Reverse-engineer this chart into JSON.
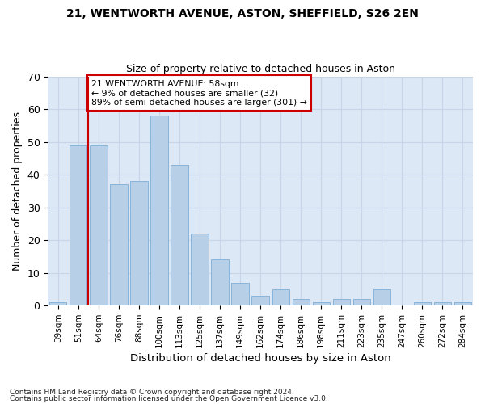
{
  "title1": "21, WENTWORTH AVENUE, ASTON, SHEFFIELD, S26 2EN",
  "title2": "Size of property relative to detached houses in Aston",
  "xlabel": "Distribution of detached houses by size in Aston",
  "ylabel": "Number of detached properties",
  "categories": [
    "39sqm",
    "51sqm",
    "64sqm",
    "76sqm",
    "88sqm",
    "100sqm",
    "113sqm",
    "125sqm",
    "137sqm",
    "149sqm",
    "162sqm",
    "174sqm",
    "186sqm",
    "198sqm",
    "211sqm",
    "223sqm",
    "235sqm",
    "247sqm",
    "260sqm",
    "272sqm",
    "284sqm"
  ],
  "values": [
    1,
    49,
    49,
    37,
    38,
    58,
    43,
    22,
    14,
    7,
    3,
    5,
    2,
    1,
    2,
    2,
    5,
    0,
    1,
    1,
    1
  ],
  "bar_color": "#b8cfe8",
  "bar_edge_color": "#8ab4d8",
  "vline_x": 1.5,
  "vline_color": "#cc0000",
  "annotation_text": "21 WENTWORTH AVENUE: 58sqm\n← 9% of detached houses are smaller (32)\n89% of semi-detached houses are larger (301) →",
  "annotation_box_color": "#ffffff",
  "annotation_box_edge": "#cc0000",
  "ylim": [
    0,
    70
  ],
  "yticks": [
    0,
    10,
    20,
    30,
    40,
    50,
    60,
    70
  ],
  "grid_color": "#c8d4e8",
  "bg_color": "#dce8f5",
  "footer1": "Contains HM Land Registry data © Crown copyright and database right 2024.",
  "footer2": "Contains public sector information licensed under the Open Government Licence v3.0."
}
